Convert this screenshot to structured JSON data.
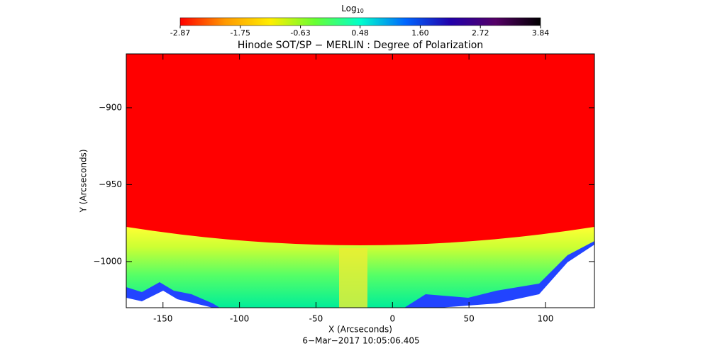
{
  "chart_data": {
    "type": "heatmap",
    "title": "Hinode SOT/SP − MERLIN : Degree of Polarization",
    "x_label": "X (Arcseconds)",
    "y_label": "Y (Arcseconds)",
    "date": "6−Mar−2017 10:05:06.405",
    "xlim": [
      -174,
      132
    ],
    "ylim": [
      -1030,
      -865
    ],
    "xticks": [
      -150,
      -100,
      -50,
      0,
      50,
      100
    ],
    "yticks": [
      {
        "value": -900,
        "label": "−900"
      },
      {
        "value": -950,
        "label": "−950"
      },
      {
        "value": -1000,
        "label": "−1000"
      }
    ],
    "colorbar": {
      "label": "Log",
      "label_subscript": "10",
      "clim": [
        -2.87,
        3.84
      ],
      "ticks": [
        -2.87,
        -1.75,
        -0.63,
        0.48,
        {
          "value": 1.6,
          "label": "1.60"
        },
        2.72,
        3.84
      ],
      "colormap": [
        "#ff0000",
        "#ff9900",
        "#ffee00",
        "#66ff33",
        "#00ffcc",
        "#0066ff",
        "#2200aa",
        "#550066",
        "#000000"
      ]
    }
  }
}
